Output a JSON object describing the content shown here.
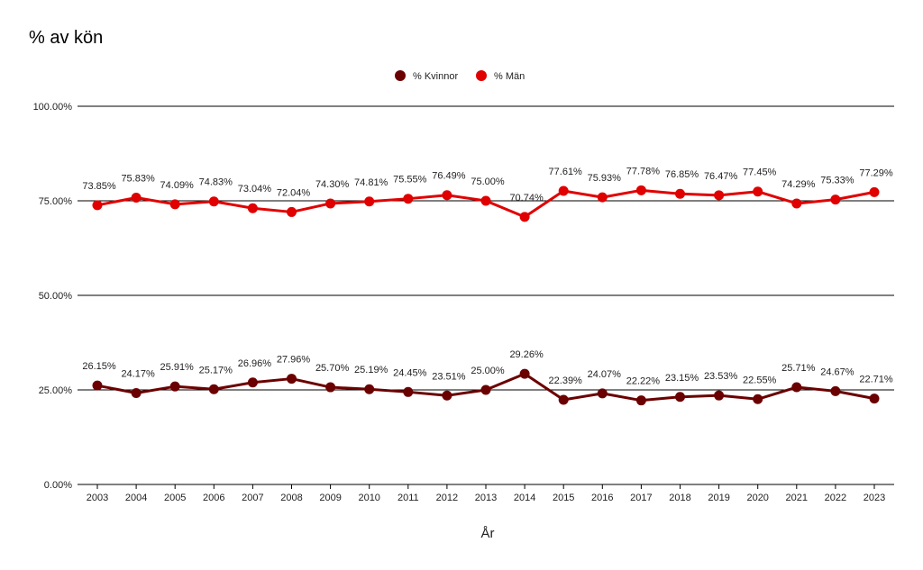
{
  "chart_data": {
    "type": "line",
    "title": "% av kön",
    "xlabel": "År",
    "ylabel": "",
    "ylim": [
      0,
      100
    ],
    "yticks": [
      "0.00%",
      "25.00%",
      "50.00%",
      "75.00%",
      "100.00%"
    ],
    "grid": true,
    "legend_position": "top-center",
    "categories": [
      "2003",
      "2004",
      "2005",
      "2006",
      "2007",
      "2008",
      "2009",
      "2010",
      "2011",
      "2012",
      "2013",
      "2014",
      "2015",
      "2016",
      "2017",
      "2018",
      "2019",
      "2020",
      "2021",
      "2022",
      "2023"
    ],
    "series": [
      {
        "name": "% Kvinnor",
        "color": "#6b0000",
        "values": [
          26.15,
          24.17,
          25.91,
          25.17,
          26.96,
          27.96,
          25.7,
          25.19,
          24.45,
          23.51,
          25.0,
          29.26,
          22.39,
          24.07,
          22.22,
          23.15,
          23.53,
          22.55,
          25.71,
          24.67,
          22.71
        ],
        "labels": [
          "26.15%",
          "24.17%",
          "25.91%",
          "25.17%",
          "26.96%",
          "27.96%",
          "25.70%",
          "25.19%",
          "24.45%",
          "23.51%",
          "25.00%",
          "29.26%",
          "22.39%",
          "24.07%",
          "22.22%",
          "23.15%",
          "23.53%",
          "22.55%",
          "25.71%",
          "24.67%",
          "22.71%"
        ]
      },
      {
        "name": "% Män",
        "color": "#e00000",
        "values": [
          73.85,
          75.83,
          74.09,
          74.83,
          73.04,
          72.04,
          74.3,
          74.81,
          75.55,
          76.49,
          75.0,
          70.74,
          77.61,
          75.93,
          77.78,
          76.85,
          76.47,
          77.45,
          74.29,
          75.33,
          77.29
        ],
        "labels": [
          "73.85%",
          "75.83%",
          "74.09%",
          "74.83%",
          "73.04%",
          "72.04%",
          "74.30%",
          "74.81%",
          "75.55%",
          "76.49%",
          "75.00%",
          "70.74%",
          "77.61%",
          "75.93%",
          "77.78%",
          "76.85%",
          "76.47%",
          "77.45%",
          "74.29%",
          "75.33%",
          "77.29%"
        ]
      }
    ]
  }
}
